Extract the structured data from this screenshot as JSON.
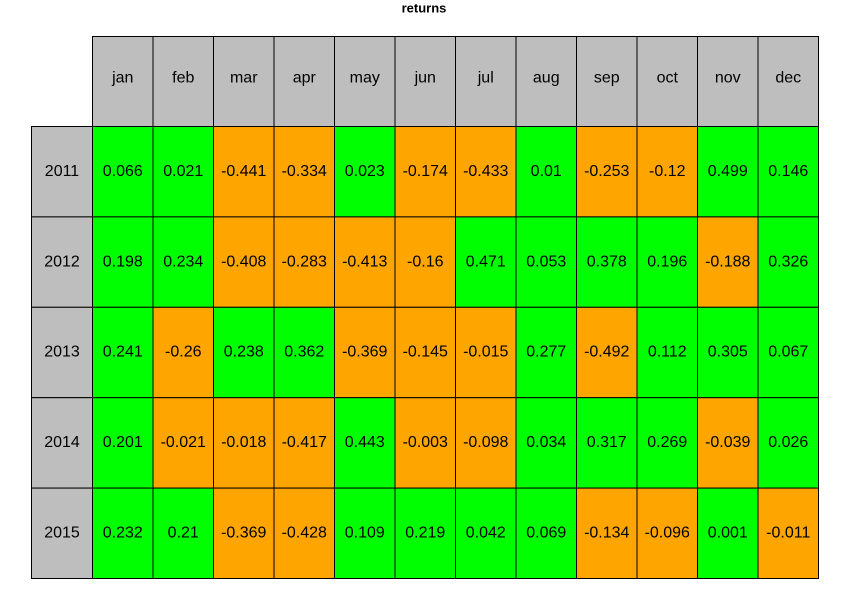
{
  "table": {
    "title": "returns",
    "columns": [
      "jan",
      "feb",
      "mar",
      "apr",
      "may",
      "jun",
      "jul",
      "aug",
      "sep",
      "oct",
      "nov",
      "dec"
    ],
    "rows": [
      {
        "label": "2011",
        "values": [
          0.066,
          0.021,
          -0.441,
          -0.334,
          0.023,
          -0.174,
          -0.433,
          0.01,
          -0.253,
          -0.12,
          0.499,
          0.146
        ]
      },
      {
        "label": "2012",
        "values": [
          0.198,
          0.234,
          -0.408,
          -0.283,
          -0.413,
          -0.16,
          0.471,
          0.053,
          0.378,
          0.196,
          -0.188,
          0.326
        ]
      },
      {
        "label": "2013",
        "values": [
          0.241,
          -0.26,
          0.238,
          0.362,
          -0.369,
          -0.145,
          -0.015,
          0.277,
          -0.492,
          0.112,
          0.305,
          0.067
        ]
      },
      {
        "label": "2014",
        "values": [
          0.201,
          -0.021,
          -0.018,
          -0.417,
          0.443,
          -0.003,
          -0.098,
          0.034,
          0.317,
          0.269,
          -0.039,
          0.026
        ]
      },
      {
        "label": "2015",
        "values": [
          0.232,
          0.21,
          -0.369,
          -0.428,
          0.109,
          0.219,
          0.042,
          0.069,
          -0.134,
          -0.096,
          0.001,
          -0.011
        ]
      }
    ],
    "positive_color": "#00ff00",
    "negative_color": "#ffa500",
    "header_color": "#bebebe"
  }
}
